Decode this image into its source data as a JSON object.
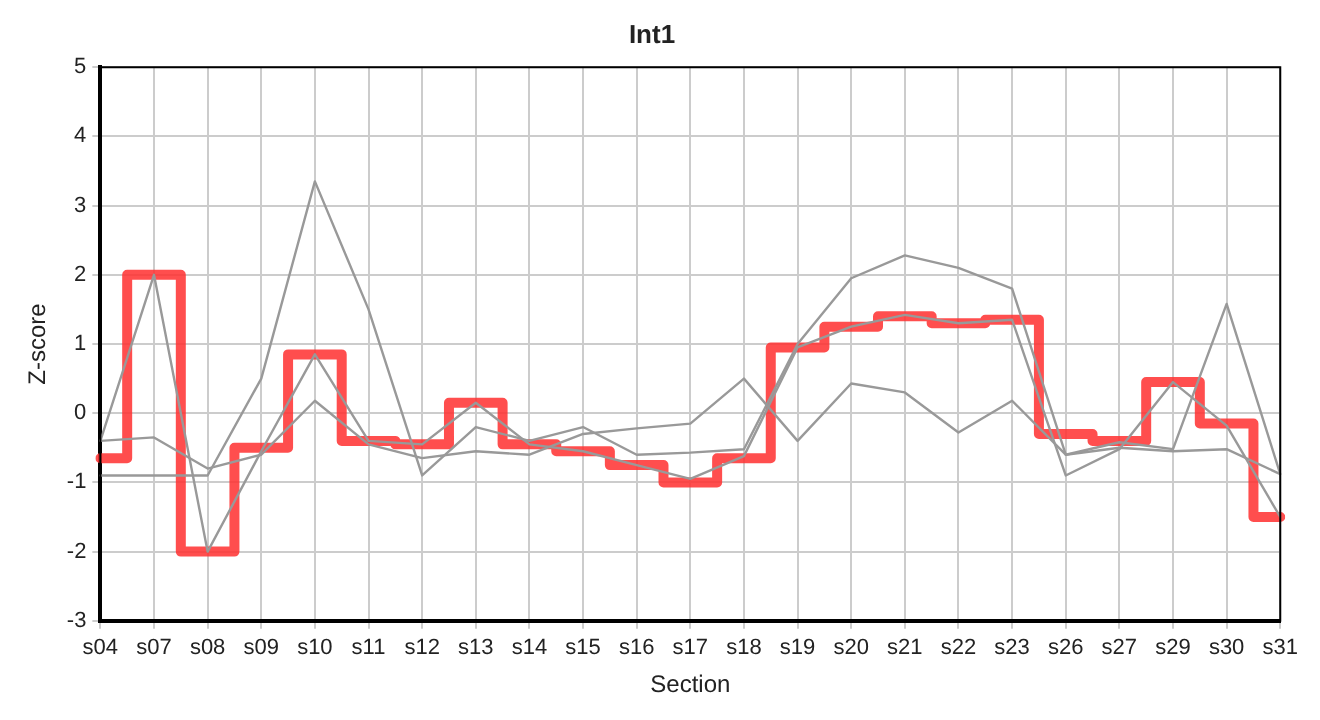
{
  "chart_data": {
    "type": "line",
    "title": "Int1",
    "xlabel": "Section",
    "ylabel": "Z-score",
    "categories": [
      "s04",
      "s07",
      "s08",
      "s09",
      "s10",
      "s11",
      "s12",
      "s13",
      "s14",
      "s15",
      "s16",
      "s17",
      "s18",
      "s19",
      "s20",
      "s21",
      "s22",
      "s23",
      "s26",
      "s27",
      "s29",
      "s30",
      "s31"
    ],
    "series": [
      {
        "type": "line",
        "color": "#999999",
        "values": [
          -0.4,
          2.0,
          -2.0,
          -0.55,
          0.85,
          -0.4,
          -0.45,
          0.15,
          -0.45,
          -0.55,
          -0.75,
          -0.95,
          -0.62,
          0.95,
          1.25,
          1.42,
          1.3,
          1.35,
          -0.9,
          -0.52,
          0.45,
          -0.18,
          -1.5
        ]
      },
      {
        "type": "line",
        "color": "#999999",
        "values": [
          -0.9,
          -0.9,
          -0.9,
          0.5,
          3.35,
          1.5,
          -0.9,
          -0.2,
          -0.4,
          -0.2,
          -0.6,
          -0.57,
          -0.52,
          1.0,
          1.95,
          2.28,
          2.1,
          1.8,
          -0.6,
          -0.42,
          -0.52,
          1.58,
          -0.88
        ]
      },
      {
        "type": "line",
        "color": "#999999",
        "values": [
          -0.4,
          -0.35,
          -0.8,
          -0.6,
          0.18,
          -0.45,
          -0.65,
          -0.55,
          -0.6,
          -0.3,
          -0.22,
          -0.15,
          0.5,
          -0.4,
          0.43,
          0.3,
          -0.28,
          0.18,
          -0.6,
          -0.5,
          -0.55,
          -0.52,
          -0.88
        ]
      },
      {
        "type": "step",
        "color": "#ff3333",
        "values": [
          -0.65,
          2.0,
          -2.0,
          -0.5,
          0.85,
          -0.4,
          -0.45,
          0.15,
          -0.45,
          -0.55,
          -0.75,
          -1.0,
          -0.65,
          0.95,
          1.25,
          1.4,
          1.3,
          1.35,
          -0.3,
          -0.4,
          0.45,
          -0.15,
          -1.5
        ]
      }
    ],
    "ylim": [
      -3,
      5
    ],
    "yticks": [
      -3,
      -2,
      -1,
      0,
      1,
      2,
      3,
      4,
      5
    ],
    "grid": true,
    "legend": false,
    "marker": "none",
    "line_style": "solid"
  }
}
